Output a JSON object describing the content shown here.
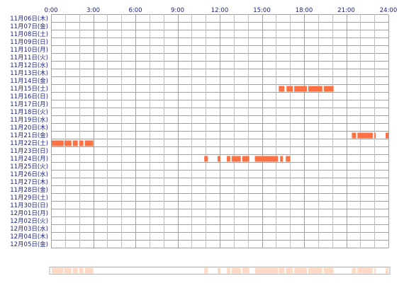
{
  "chart_data": {
    "type": "timeline",
    "x_ticks": [
      "0:00",
      "3:00",
      "6:00",
      "9:00",
      "12:00",
      "15:00",
      "18:00",
      "21:00",
      "24:00"
    ],
    "xlim": [
      0,
      24
    ],
    "grid": true,
    "colors": {
      "bar": "#ff7043",
      "bar_gap": "#ffffff",
      "summary": "#ffd9c4",
      "grid": "#a0a0a0",
      "grid_minor": "#c0c0c0",
      "label": "#1a237e"
    },
    "dates": [
      "11月06日(木)",
      "11月07日(金)",
      "11月08日(土)",
      "11月09日(日)",
      "11月10日(月)",
      "11月11日(火)",
      "11月12日(水)",
      "11月13日(木)",
      "11月14日(金)",
      "11月15日(土)",
      "11月16日(日)",
      "11月17日(月)",
      "11月18日(火)",
      "11月19日(水)",
      "11月20日(木)",
      "11月21日(金)",
      "11月22日(土)",
      "11月23日(日)",
      "11月24日(月)",
      "11月25日(火)",
      "11月26日(水)",
      "11月27日(木)",
      "11月28日(金)",
      "11月29日(土)",
      "11月30日(日)",
      "12月01日(月)",
      "12月02日(火)",
      "12月03日(水)",
      "12月04日(木)",
      "12月05日(金)"
    ],
    "segments": {
      "11月15日(土)": [
        [
          16.2,
          16.6
        ],
        [
          16.75,
          17.2
        ],
        [
          17.3,
          18.2
        ],
        [
          18.3,
          19.3
        ],
        [
          19.4,
          20.1
        ]
      ],
      "11月21日(金)": [
        [
          21.4,
          21.7
        ],
        [
          21.8,
          22.9
        ],
        [
          23.0,
          23.1
        ],
        [
          23.8,
          24.0
        ]
      ],
      "11月22日(土)": [
        [
          0.05,
          0.9
        ],
        [
          0.95,
          1.45
        ],
        [
          1.55,
          1.9
        ],
        [
          2.0,
          2.3
        ],
        [
          2.4,
          3.0
        ]
      ],
      "11月24日(月)": [
        [
          10.9,
          11.15
        ],
        [
          11.85,
          12.05
        ],
        [
          12.5,
          12.75
        ],
        [
          12.85,
          13.5
        ],
        [
          13.6,
          14.1
        ],
        [
          14.5,
          16.15
        ],
        [
          16.3,
          16.5
        ],
        [
          16.7,
          17.0
        ]
      ]
    }
  }
}
